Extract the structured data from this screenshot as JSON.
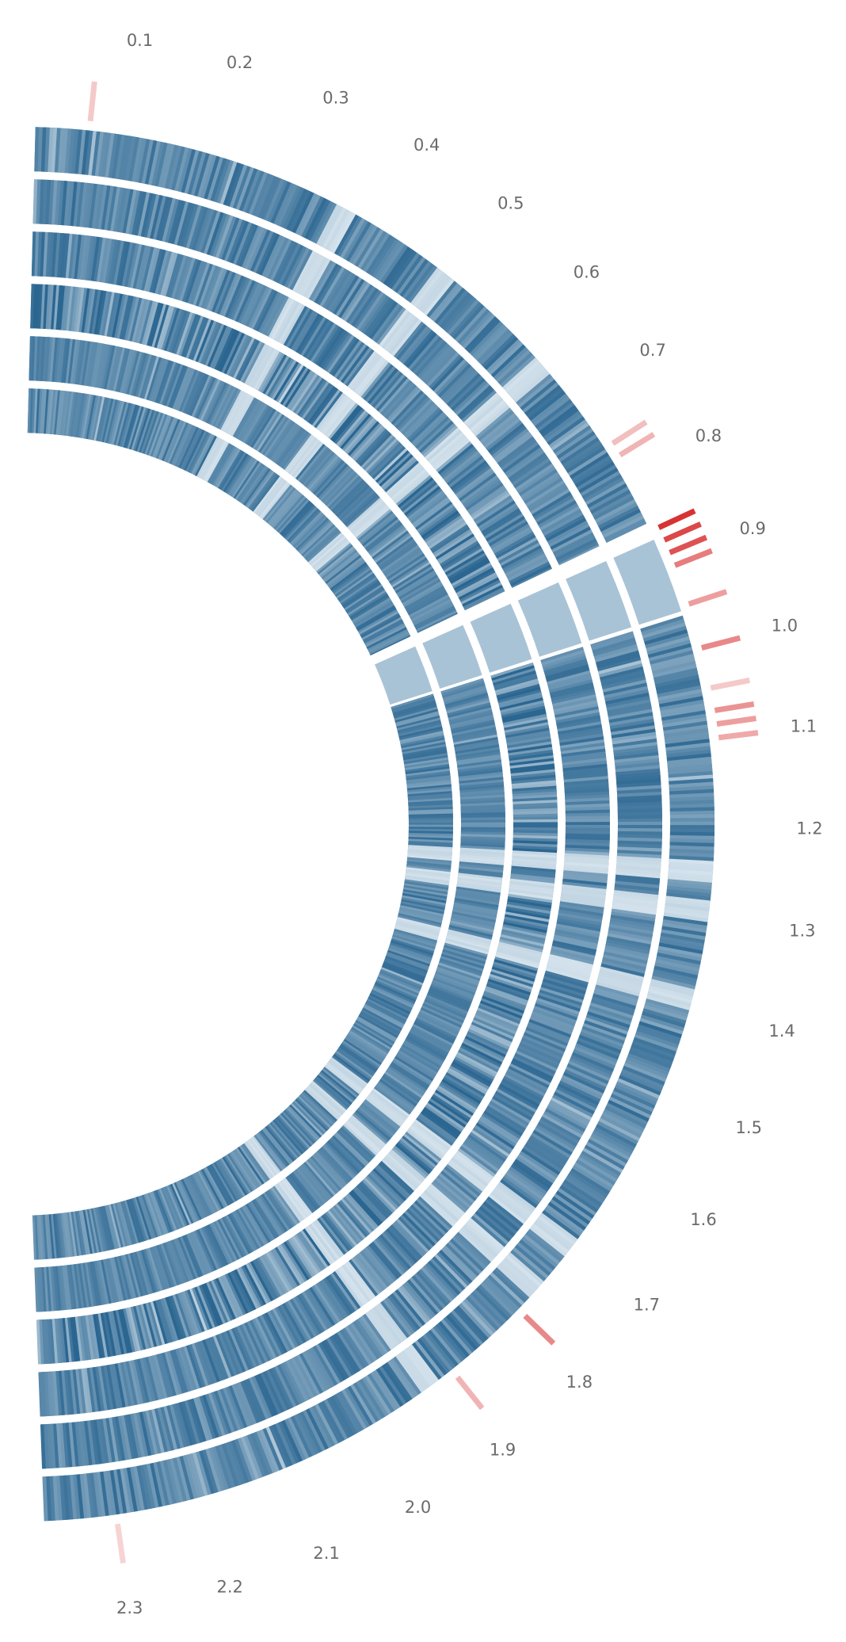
{
  "chart_data": {
    "type": "circular-track",
    "tick_labels": [
      "0.1",
      "0.2",
      "0.3",
      "0.4",
      "0.5",
      "0.6",
      "0.7",
      "0.8",
      "0.9",
      "1.0",
      "1.1",
      "1.2",
      "1.3",
      "1.4",
      "1.5",
      "1.6",
      "1.7",
      "1.8",
      "1.9",
      "2.0",
      "2.1",
      "2.2",
      "2.3"
    ],
    "tick_values": [
      0.1,
      0.2,
      0.3,
      0.4,
      0.5,
      0.6,
      0.7,
      0.8,
      0.9,
      1.0,
      1.1,
      1.2,
      1.3,
      1.4,
      1.5,
      1.6,
      1.7,
      1.8,
      1.9,
      2.0,
      2.1,
      2.2,
      2.3
    ],
    "tracks": 6,
    "segments": [
      {
        "start": 0.0,
        "end": 0.85
      },
      {
        "start": 0.87,
        "end": 0.955
      },
      {
        "start": 0.96,
        "end": 2.38
      }
    ],
    "light_bands": [
      0.36,
      0.49,
      0.64,
      1.245,
      1.29,
      1.39,
      1.7,
      1.76,
      1.92
    ],
    "highlights": [
      {
        "position": 0.06,
        "intensity": 0.25
      },
      {
        "position": 0.755,
        "intensity": 0.3
      },
      {
        "position": 0.77,
        "intensity": 0.35
      },
      {
        "position": 0.86,
        "intensity": 0.95
      },
      {
        "position": 0.875,
        "intensity": 0.85
      },
      {
        "position": 0.89,
        "intensity": 0.8
      },
      {
        "position": 0.905,
        "intensity": 0.6
      },
      {
        "position": 0.95,
        "intensity": 0.45
      },
      {
        "position": 1.0,
        "intensity": 0.55
      },
      {
        "position": 1.045,
        "intensity": 0.25
      },
      {
        "position": 1.07,
        "intensity": 0.5
      },
      {
        "position": 1.085,
        "intensity": 0.45
      },
      {
        "position": 1.1,
        "intensity": 0.4
      },
      {
        "position": 1.79,
        "intensity": 0.55
      },
      {
        "position": 1.89,
        "intensity": 0.35
      },
      {
        "position": 2.3,
        "intensity": 0.2
      }
    ],
    "colors": {
      "track_dark": "#2b6691",
      "track_light": "#dde9f1",
      "highlight": "#d62728",
      "label": "#6b6b6b"
    }
  }
}
